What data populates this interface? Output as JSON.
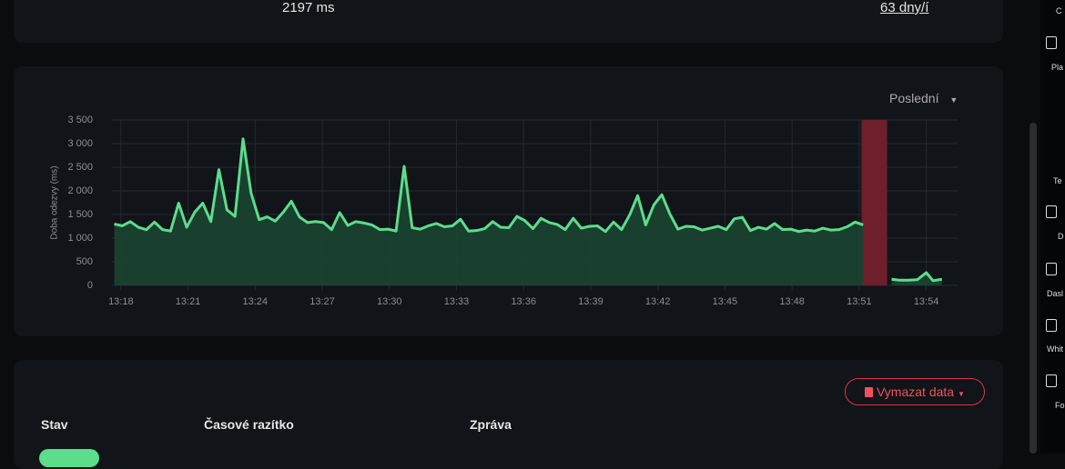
{
  "summary": {
    "response_time": "2197 ms",
    "cert_expiry": "63 dny/í"
  },
  "chart_data": {
    "type": "line",
    "y_label": "Doba odezvy (ms)",
    "period_select": "Poslední",
    "xlim": [
      797.6,
      835.4
    ],
    "ylim": [
      0,
      3500
    ],
    "xticks": [
      {
        "value": 798,
        "label": "13:18"
      },
      {
        "value": 801,
        "label": "13:21"
      },
      {
        "value": 804,
        "label": "13:24"
      },
      {
        "value": 807,
        "label": "13:27"
      },
      {
        "value": 810,
        "label": "13:30"
      },
      {
        "value": 813,
        "label": "13:33"
      },
      {
        "value": 816,
        "label": "13:36"
      },
      {
        "value": 819,
        "label": "13:39"
      },
      {
        "value": 822,
        "label": "13:42"
      },
      {
        "value": 825,
        "label": "13:45"
      },
      {
        "value": 828,
        "label": "13:48"
      },
      {
        "value": 831,
        "label": "13:51"
      },
      {
        "value": 834,
        "label": "13:54"
      }
    ],
    "yticks": [
      0,
      500,
      {
        "value": 1000,
        "label": "1 000"
      },
      {
        "value": 1500,
        "label": "1 500"
      },
      {
        "value": 2000,
        "label": "2 000"
      },
      {
        "value": 2500,
        "label": "2 500"
      },
      {
        "value": 3000,
        "label": "3 000"
      },
      {
        "value": 3500,
        "label": "3 500"
      }
    ],
    "grid": true,
    "downtime": {
      "range": [
        831.1,
        832.25
      ],
      "color": "#6e1f2b"
    },
    "x": [
      797.7,
      798.06,
      798.42,
      798.78,
      799.14,
      799.5,
      799.86,
      800.22,
      800.58,
      800.94,
      801.3,
      801.66,
      802.02,
      802.38,
      802.74,
      803.1,
      803.46,
      803.82,
      804.18,
      804.54,
      804.9,
      805.26,
      805.62,
      805.98,
      806.34,
      806.7,
      807.06,
      807.42,
      807.78,
      808.14,
      808.5,
      808.86,
      809.22,
      809.58,
      809.94,
      810.3,
      810.66,
      811.02,
      811.38,
      811.74,
      812.1,
      812.46,
      812.82,
      813.18,
      813.54,
      813.9,
      814.26,
      814.62,
      814.98,
      815.34,
      815.7,
      816.06,
      816.42,
      816.78,
      817.14,
      817.5,
      817.86,
      818.22,
      818.58,
      818.94,
      819.3,
      819.66,
      820.02,
      820.38,
      820.74,
      821.1,
      821.46,
      821.82,
      822.18,
      822.54,
      822.9,
      823.26,
      823.62,
      823.98,
      824.34,
      824.7,
      825.06,
      825.42,
      825.78,
      826.14,
      826.5,
      826.86,
      827.22,
      827.58,
      827.94,
      828.3,
      828.66,
      829.02,
      829.38,
      829.74,
      830.1,
      830.46,
      830.82,
      831.18,
      831.6,
      832.45,
      832.8,
      833.2,
      833.6,
      834.0,
      834.3,
      834.7
    ],
    "series": [
      {
        "color": "#5cdd8b",
        "fill": "#1b4431",
        "values": [
          1300,
          1260,
          1350,
          1230,
          1180,
          1340,
          1180,
          1150,
          1740,
          1230,
          1550,
          1740,
          1350,
          2450,
          1600,
          1460,
          3100,
          1950,
          1390,
          1450,
          1360,
          1550,
          1780,
          1450,
          1330,
          1350,
          1330,
          1180,
          1540,
          1270,
          1350,
          1320,
          1280,
          1180,
          1190,
          1150,
          2520,
          1220,
          1190,
          1260,
          1310,
          1240,
          1260,
          1400,
          1150,
          1160,
          1200,
          1350,
          1230,
          1220,
          1460,
          1370,
          1200,
          1420,
          1330,
          1290,
          1180,
          1420,
          1210,
          1250,
          1260,
          1140,
          1340,
          1180,
          1490,
          1900,
          1280,
          1700,
          1920,
          1510,
          1190,
          1250,
          1240,
          1170,
          1210,
          1250,
          1180,
          1410,
          1440,
          1160,
          1230,
          1190,
          1310,
          1180,
          1190,
          1140,
          1170,
          1150,
          1210,
          1170,
          1180,
          1240,
          1340,
          1280,
          null,
          130,
          110,
          110,
          120,
          270,
          100,
          130
        ]
      }
    ]
  },
  "events": {
    "clear_button": "Vymazat data",
    "columns": [
      "Stav",
      "Časové razítko",
      "Zpráva"
    ]
  },
  "sidebar": [
    "C",
    "Pla",
    "Te",
    "D",
    "Dasl",
    "Whit",
    "Fo"
  ]
}
